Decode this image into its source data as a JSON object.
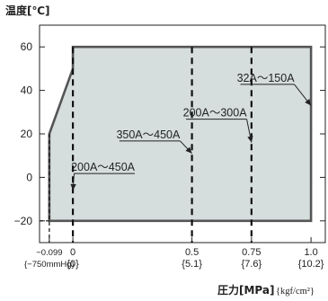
{
  "chart_data": {
    "type": "area",
    "title": "温度[℃]",
    "xlabel": "圧力[MPa]",
    "xlabel_unit": "{kgf/cm²}",
    "ylim": [
      -30,
      70
    ],
    "xlim": [
      -0.14,
      1.06
    ],
    "y_ticks": [
      {
        "value": 60,
        "label": "60"
      },
      {
        "value": 40,
        "label": "40"
      },
      {
        "value": 20,
        "label": "20"
      },
      {
        "value": 0,
        "label": "0"
      },
      {
        "value": -20,
        "label": "−20"
      }
    ],
    "x_ticks": [
      {
        "value": -0.099,
        "label": "−0.099",
        "sublabel": "{−750mmHg}"
      },
      {
        "value": 0,
        "label": "0",
        "sublabel": "{0}"
      },
      {
        "value": 0.5,
        "label": "0.5",
        "sublabel": "{5.1}"
      },
      {
        "value": 0.75,
        "label": "0.75",
        "sublabel": "{7.6}"
      },
      {
        "value": 1.0,
        "label": "1.0",
        "sublabel": "{10.2}"
      }
    ],
    "region": [
      {
        "x": -0.099,
        "y": -20
      },
      {
        "x": -0.099,
        "y": 20
      },
      {
        "x": 0,
        "y": 50
      },
      {
        "x": 0,
        "y": 60
      },
      {
        "x": 1.0,
        "y": 60
      },
      {
        "x": 1.0,
        "y": -20
      }
    ],
    "dashed_lines_x": [
      -0.099,
      0,
      0.5,
      0.75
    ],
    "annotations": [
      {
        "text": "32A〜150A",
        "x": 0.93,
        "y": 44,
        "target_x": 1.0,
        "target_y": 33
      },
      {
        "text": "200A〜300A",
        "x": 0.73,
        "y": 28,
        "target_x": 0.75,
        "target_y": 16
      },
      {
        "text": "350A〜450A",
        "x": 0.45,
        "y": 18,
        "target_x": 0.5,
        "target_y": 11
      },
      {
        "text": "200A〜450A",
        "x": 0.26,
        "y": 3,
        "target_x": 0,
        "target_y": -6
      }
    ]
  },
  "colors": {
    "fill": "#d5dedd",
    "line": "#555555",
    "dash": "#111111",
    "axis": "#222222"
  }
}
